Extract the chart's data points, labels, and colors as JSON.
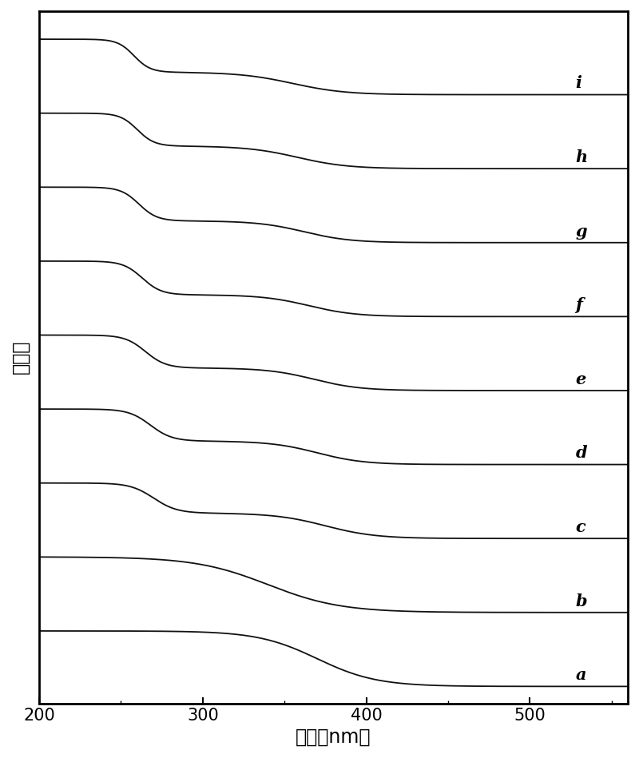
{
  "xlabel": "波长（nm）",
  "ylabel": "吸收度",
  "xlim": [
    200,
    560
  ],
  "ylim": [
    -0.02,
    1.02
  ],
  "xticks": [
    200,
    300,
    400,
    500
  ],
  "curve_labels": [
    "a",
    "b",
    "c",
    "d",
    "e",
    "f",
    "g",
    "h",
    "i"
  ],
  "background_color": "#ffffff",
  "line_color": "#111111",
  "label_fontsize": 15,
  "axis_fontsize": 17,
  "tick_fontsize": 15
}
